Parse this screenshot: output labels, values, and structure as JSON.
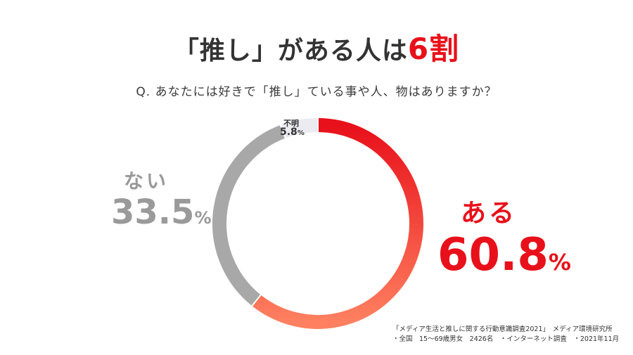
{
  "header": {
    "title_prefix": "「推し」がある人は",
    "title_highlight": "6割",
    "question": "Q. あなたには好きで「推し」ている事や人、物はありますか？"
  },
  "chart_data": {
    "type": "pie",
    "donut": true,
    "categories": [
      "ある",
      "ない",
      "不明"
    ],
    "values": [
      60.8,
      33.5,
      5.8
    ],
    "unit": "%",
    "display_values": [
      "60.8",
      "33.5",
      "5.8"
    ],
    "colors": [
      "#e8101a",
      "#a8a8a8",
      "#ecebf2"
    ],
    "gradient_end": "#ff8060",
    "start": "top, clockwise"
  },
  "source": {
    "line1": "「メディア生活と推しに関する行動意識調査2021」　メディア環境研究所",
    "line2": "・全国　15〜69歳男女　2426名　・インターネット調査　・2021年11月"
  }
}
